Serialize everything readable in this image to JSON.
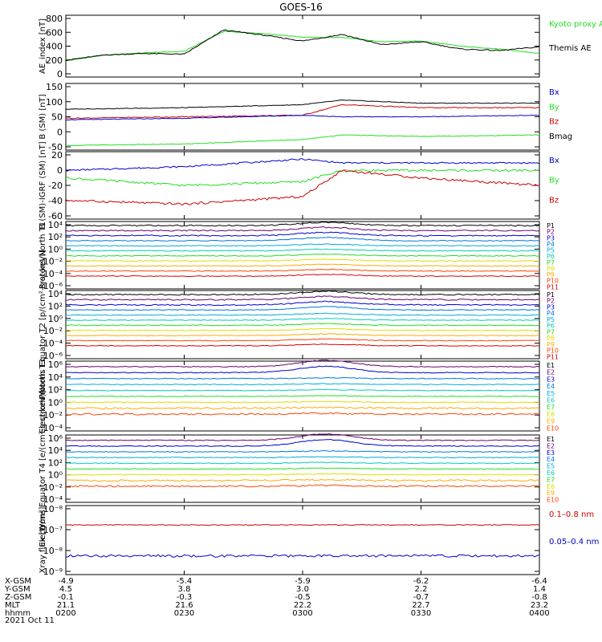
{
  "title": "GOES-16",
  "date": "2021 Oct 11",
  "colors": {
    "black": "#000000",
    "green": "#22dd22",
    "blue": "#0000cc",
    "red": "#cc0000",
    "p": [
      "#000000",
      "#6a006a",
      "#0000cc",
      "#0077dd",
      "#00aadd",
      "#00ccbb",
      "#22dd22",
      "#dddd00",
      "#ffaa00",
      "#ff4400",
      "#dd0000"
    ]
  },
  "panels": [
    {
      "ylabel": "AE_index [nT]",
      "ticks": [
        "800",
        "600",
        "400",
        "200",
        "0"
      ],
      "legend": [
        {
          "text": "Kyoto proxy AE",
          "color": "#22dd22"
        },
        {
          "text": "Themis AE",
          "color": "#000000"
        }
      ]
    },
    {
      "ylabel": "B (SM) [nT]",
      "ticks": [
        "150",
        "100",
        "50",
        "0",
        "-50"
      ],
      "legend": [
        {
          "text": "Bx",
          "color": "#0000cc"
        },
        {
          "text": "By",
          "color": "#22dd22"
        },
        {
          "text": "Bz",
          "color": "#cc0000"
        },
        {
          "text": "Bmag",
          "color": "#000000"
        }
      ]
    },
    {
      "ylabel": "B (SM)-IGRF (SM) [nT]",
      "ticks": [
        "20",
        "0",
        "-20",
        "-40",
        "-60"
      ],
      "legend": [
        {
          "text": "Bx",
          "color": "#0000cc"
        },
        {
          "text": "By",
          "color": "#22dd22"
        },
        {
          "text": "Bz",
          "color": "#cc0000"
        }
      ]
    },
    {
      "ylabel": "Protons North T1",
      "ticks": [
        "10⁴",
        "10²",
        "10⁰",
        "10⁻²",
        "10⁻⁴",
        "10⁻⁶"
      ],
      "legend_small": [
        "P1",
        "P2",
        "P3",
        "P4",
        "P5",
        "P6",
        "P7",
        "P8",
        "P9",
        "P10",
        "P11"
      ]
    },
    {
      "ylabel": "Protons Equator T2 [p/(cm²-s-sr-keV)]",
      "ticks": [
        "10⁴",
        "10²",
        "10⁰",
        "10⁻²",
        "10⁻⁴",
        "10⁻⁶"
      ],
      "legend_small": [
        "P1",
        "P2",
        "P3",
        "P4",
        "P5",
        "P6",
        "P7",
        "P8",
        "P9",
        "P10",
        "P11"
      ]
    },
    {
      "ylabel": "Electrons North T3",
      "ticks": [
        "10⁶",
        "10⁴",
        "10²",
        "10⁰",
        "10⁻²",
        "10⁻⁴"
      ],
      "legend_small": [
        "E1",
        "E2",
        "E3",
        "E4",
        "E5",
        "E6",
        "E7",
        "E8",
        "E9",
        "E10"
      ]
    },
    {
      "ylabel": "Electrons Equator T4 [e/(cm²-s-sr-keV)]",
      "ticks": [
        "10⁶",
        "10⁴",
        "10²",
        "10⁰",
        "10⁻²",
        "10⁻⁴"
      ],
      "legend_small": [
        "E1",
        "E2",
        "E3",
        "E4",
        "E5",
        "E6",
        "E7",
        "E8",
        "E9",
        "E10"
      ]
    },
    {
      "ylabel": "Xray flux [W/m²]",
      "ticks": [
        "10⁻⁸",
        "10⁻⁷",
        "10⁻⁸",
        "10⁻⁹"
      ],
      "legend": [
        {
          "text": "0.1–0.8 nm",
          "color": "#cc0000"
        },
        {
          "text": "0.05–0.4 nm",
          "color": "#0000cc"
        }
      ]
    }
  ],
  "xaxis": {
    "row_labels": [
      "X-GSM",
      "Y-GSM",
      "Z-GSM",
      "MLT",
      "hhmm"
    ],
    "columns": [
      {
        "values": [
          "-4.9",
          "4.5",
          "-0.1",
          "21.1",
          "0200"
        ]
      },
      {
        "values": [
          "-5.4",
          "3.8",
          "-0.3",
          "21.6",
          "0230"
        ]
      },
      {
        "values": [
          "-5.9",
          "3.0",
          "-0.5",
          "22.2",
          "0300"
        ]
      },
      {
        "values": [
          "-6.2",
          "2.2",
          "-0.7",
          "22.7",
          "0330"
        ]
      },
      {
        "values": [
          "-6.4",
          "1.4",
          "-0.8",
          "23.2",
          "0400"
        ]
      }
    ]
  },
  "chart_data": {
    "type": "line",
    "time_range": [
      "0200",
      "0400"
    ],
    "ae_panel": {
      "t": [
        "0200",
        "0210",
        "0220",
        "0230",
        "0240",
        "0250",
        "0300",
        "0310",
        "0320",
        "0330",
        "0340",
        "0350",
        "0400"
      ],
      "kyoto_proxy_ae": [
        200,
        280,
        310,
        330,
        600,
        570,
        520,
        520,
        460,
        470,
        400,
        360,
        300
      ],
      "themis_ae": [
        210,
        280,
        300,
        290,
        620,
        550,
        470,
        560,
        420,
        460,
        360,
        340,
        390
      ]
    },
    "b_sm_panel": {
      "t": [
        "0200",
        "0230",
        "0300",
        "0310",
        "0330",
        "0400"
      ],
      "bmag": [
        75,
        80,
        90,
        105,
        95,
        95
      ],
      "bx": [
        40,
        45,
        55,
        50,
        50,
        55
      ],
      "bz": [
        45,
        50,
        55,
        90,
        80,
        80
      ],
      "by": [
        -45,
        -40,
        -25,
        -10,
        -15,
        -10
      ]
    },
    "b_sm_minus_igrf_panel": {
      "t": [
        "0200",
        "0230",
        "0300",
        "0310",
        "0330",
        "0400"
      ],
      "bx": [
        0,
        5,
        15,
        10,
        10,
        10
      ],
      "by": [
        -10,
        -20,
        -15,
        0,
        0,
        0
      ],
      "bz": [
        -40,
        -45,
        -35,
        0,
        -10,
        -20
      ]
    },
    "xray_panel": {
      "long_0.1_0.8_nm": 2e-07,
      "short_0.05_0.4_nm": 6e-09
    }
  }
}
